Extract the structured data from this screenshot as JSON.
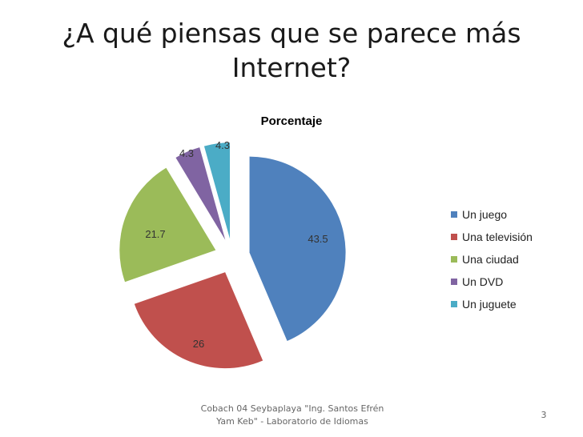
{
  "slide": {
    "title_line1": "¿A qué piensas que se parece más",
    "title_line2": "Internet?",
    "footer_line1": "Cobach 04 Seybaplaya \"Ing. Santos Efrén",
    "footer_line2": "Yam Keb\" - Laboratorio de Idiomas",
    "page_number": "3"
  },
  "chart_data": {
    "type": "pie",
    "title": "Porcentaje",
    "categories": [
      "Un juego",
      "Una televisión",
      "Una ciudad",
      "Un DVD",
      "Un juguete"
    ],
    "values": [
      43.5,
      26,
      21.7,
      4.3,
      4.3
    ],
    "data_labels": [
      "43.5",
      "26",
      "21.7",
      "4.3",
      "4.3"
    ],
    "colors": [
      "#4F81BD",
      "#C0504D",
      "#9BBB59",
      "#8064A2",
      "#4BACC6"
    ],
    "exploded": true,
    "legend_position": "right"
  }
}
